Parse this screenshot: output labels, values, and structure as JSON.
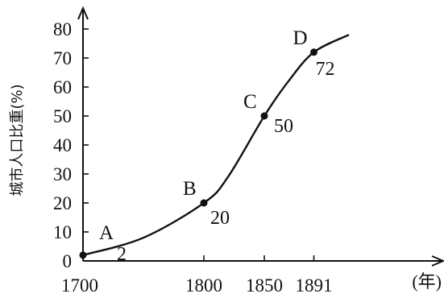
{
  "chart_data": {
    "type": "line",
    "title": "",
    "ylabel": "城市人口比重(%)",
    "xlabel": "(年)",
    "xlim": [
      1700,
      1940
    ],
    "ylim": [
      0,
      80
    ],
    "x_ticks": [
      1700,
      1800,
      1850,
      1891
    ],
    "y_ticks": [
      0,
      10,
      20,
      30,
      40,
      50,
      60,
      70,
      80
    ],
    "series": [
      {
        "values": [
          {
            "x": 1700,
            "y": 2
          },
          {
            "x": 1750,
            "y": 8
          },
          {
            "x": 1800,
            "y": 20
          },
          {
            "x": 1820,
            "y": 29
          },
          {
            "x": 1850,
            "y": 50
          },
          {
            "x": 1870,
            "y": 62
          },
          {
            "x": 1891,
            "y": 72
          },
          {
            "x": 1920,
            "y": 78
          }
        ]
      }
    ],
    "points": [
      {
        "label": "A",
        "x": 1700,
        "value": 2,
        "value_text": "2"
      },
      {
        "label": "B",
        "x": 1800,
        "value": 20,
        "value_text": "20"
      },
      {
        "label": "C",
        "x": 1850,
        "value": 50,
        "value_text": "50"
      },
      {
        "label": "D",
        "x": 1891,
        "value": 72,
        "value_text": "72"
      }
    ],
    "grid": false,
    "legend": "none"
  },
  "colors": {
    "line": "#111111",
    "axis": "#111111",
    "point": "#111111"
  }
}
